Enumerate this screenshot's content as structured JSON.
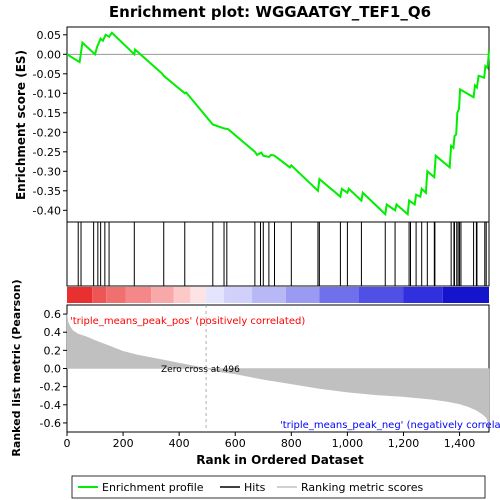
{
  "chart_data": {
    "type": "line",
    "title": "Enrichment plot: WGGAATGY_TEF1_Q6",
    "top_panel": {
      "ylabel": "Enrichment score (ES)",
      "ylim": [
        -0.43,
        0.07
      ],
      "yticks": [
        0.05,
        0.0,
        -0.05,
        -0.1,
        -0.15,
        -0.2,
        -0.25,
        -0.3,
        -0.35,
        -0.4
      ],
      "ytick_labels": [
        "0.05",
        "0.00",
        "-0.05",
        "-0.10",
        "-0.15",
        "-0.20",
        "-0.25",
        "-0.30",
        "-0.35",
        "-0.40"
      ],
      "series": [
        {
          "name": "Enrichment profile",
          "color": "#00ee00",
          "x": [
            0,
            45,
            55,
            100,
            108,
            120,
            128,
            138,
            150,
            160,
            240,
            243,
            340,
            345,
            420,
            425,
            520,
            560,
            575,
            670,
            678,
            693,
            700,
            720,
            728,
            740,
            795,
            800,
            895,
            900,
            975,
            980,
            1000,
            1005,
            1050,
            1055,
            1135,
            1140,
            1170,
            1175,
            1215,
            1220,
            1240,
            1245,
            1260,
            1265,
            1280,
            1285,
            1310,
            1315,
            1365,
            1370,
            1378,
            1382,
            1388,
            1392,
            1398,
            1402,
            1450,
            1455,
            1462,
            1468,
            1488,
            1492,
            1500,
            1505
          ],
          "y": [
            0.0,
            -0.02,
            0.03,
            0.0,
            0.02,
            0.04,
            0.035,
            0.05,
            0.045,
            0.055,
            0.0,
            0.012,
            -0.05,
            -0.055,
            -0.1,
            -0.098,
            -0.18,
            -0.19,
            -0.192,
            -0.25,
            -0.258,
            -0.252,
            -0.26,
            -0.263,
            -0.258,
            -0.26,
            -0.29,
            -0.285,
            -0.35,
            -0.32,
            -0.365,
            -0.345,
            -0.355,
            -0.345,
            -0.375,
            -0.355,
            -0.41,
            -0.385,
            -0.4,
            -0.385,
            -0.41,
            -0.375,
            -0.385,
            -0.36,
            -0.365,
            -0.345,
            -0.355,
            -0.3,
            -0.315,
            -0.26,
            -0.29,
            -0.235,
            -0.24,
            -0.21,
            -0.205,
            -0.15,
            -0.14,
            -0.09,
            -0.11,
            -0.08,
            -0.085,
            -0.055,
            -0.06,
            -0.03,
            -0.035,
            0.01
          ]
        }
      ]
    },
    "hits": [
      40,
      50,
      95,
      110,
      120,
      135,
      150,
      240,
      345,
      420,
      520,
      560,
      570,
      670,
      690,
      700,
      720,
      740,
      800,
      895,
      900,
      975,
      1000,
      1050,
      1135,
      1170,
      1220,
      1225,
      1245,
      1265,
      1285,
      1310,
      1312,
      1370,
      1380,
      1382,
      1390,
      1395,
      1400,
      1405,
      1450,
      1460,
      1462,
      1490,
      1495
    ],
    "bottom_panel": {
      "ylabel": "Ranked list metric (Pearson)",
      "ylim": [
        -0.7,
        0.7
      ],
      "yticks": [
        0.6,
        0.4,
        0.2,
        0.0,
        -0.2,
        -0.4,
        -0.6
      ],
      "ytick_labels": [
        "0.6",
        "0.4",
        "0.2",
        "0.0",
        "-0.2",
        "-0.4",
        "-0.6"
      ],
      "metric_curve": {
        "name": "Ranking metric scores",
        "color": "#c0c0c0",
        "x": [
          0,
          3,
          10,
          20,
          40,
          70,
          100,
          150,
          200,
          250,
          300,
          350,
          400,
          450,
          496,
          550,
          600,
          700,
          800,
          900,
          1000,
          1100,
          1200,
          1300,
          1350,
          1400,
          1430,
          1460,
          1480,
          1495,
          1505
        ],
        "y": [
          0.6,
          0.52,
          0.47,
          0.42,
          0.38,
          0.35,
          0.31,
          0.25,
          0.19,
          0.15,
          0.12,
          0.09,
          0.06,
          0.03,
          0.0,
          -0.04,
          -0.06,
          -0.12,
          -0.17,
          -0.22,
          -0.26,
          -0.29,
          -0.31,
          -0.34,
          -0.36,
          -0.39,
          -0.42,
          -0.46,
          -0.5,
          -0.54,
          -0.62
        ]
      },
      "zero_cross_label": "Zero cross at 496",
      "zero_cross": 496,
      "pos_label": "'triple_means_peak_pos' (positively correlated)",
      "neg_label": "'triple_means_peak_neg' (negatively correlated)"
    },
    "xlabel": "Rank in Ordered Dataset",
    "xlim": [
      0,
      1505
    ],
    "xticks": [
      0,
      200,
      400,
      600,
      800,
      1000,
      1200,
      1400
    ],
    "xtick_labels": [
      "0",
      "200",
      "400",
      "600",
      "800",
      "1,000",
      "1,200",
      "1,400"
    ],
    "legend": {
      "placement": "bottom",
      "entries": [
        {
          "label": "Enrichment profile",
          "color": "#00ee00"
        },
        {
          "label": "Hits",
          "color": "#000000"
        },
        {
          "label": "Ranking metric scores",
          "color": "#c0c0c0"
        }
      ]
    }
  }
}
